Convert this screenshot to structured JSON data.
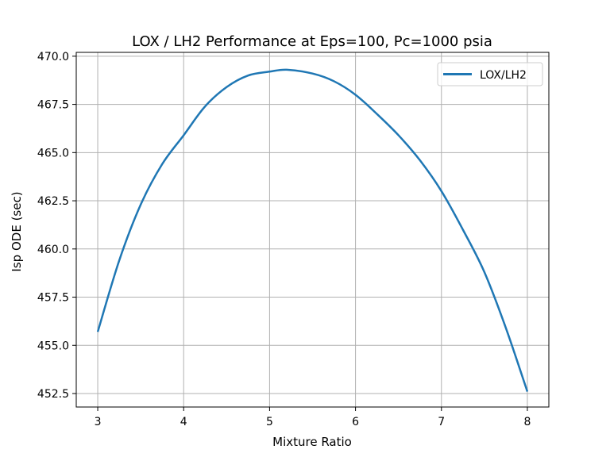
{
  "chart_data": {
    "type": "line",
    "title": "LOX / LH2 Performance at Eps=100, Pc=1000 psia",
    "xlabel": "Mixture Ratio",
    "ylabel": "Isp ODE (sec)",
    "xlim": [
      2.75,
      8.25
    ],
    "ylim": [
      451.8,
      470.2
    ],
    "xticks": [
      3,
      4,
      5,
      6,
      7,
      8
    ],
    "xtick_labels": [
      "3",
      "4",
      "5",
      "6",
      "7",
      "8"
    ],
    "yticks": [
      452.5,
      455.0,
      457.5,
      460.0,
      462.5,
      465.0,
      467.5,
      470.0
    ],
    "ytick_labels": [
      "452.5",
      "455.0",
      "457.5",
      "460.0",
      "462.5",
      "465.0",
      "467.5",
      "470.0"
    ],
    "grid": true,
    "legend_position": "top-right",
    "series": [
      {
        "name": "LOX/LH2",
        "color": "#1f77b4",
        "x": [
          3.0,
          3.25,
          3.5,
          3.75,
          4.0,
          4.25,
          4.5,
          4.75,
          5.0,
          5.2,
          5.5,
          5.75,
          6.0,
          6.25,
          6.5,
          6.75,
          7.0,
          7.25,
          7.5,
          7.75,
          8.0
        ],
        "y": [
          455.7,
          459.4,
          462.3,
          464.4,
          465.9,
          467.4,
          468.4,
          469.0,
          469.2,
          469.3,
          469.1,
          468.7,
          468.0,
          467.0,
          465.9,
          464.6,
          463.0,
          461.0,
          458.8,
          455.9,
          452.6
        ]
      }
    ]
  }
}
